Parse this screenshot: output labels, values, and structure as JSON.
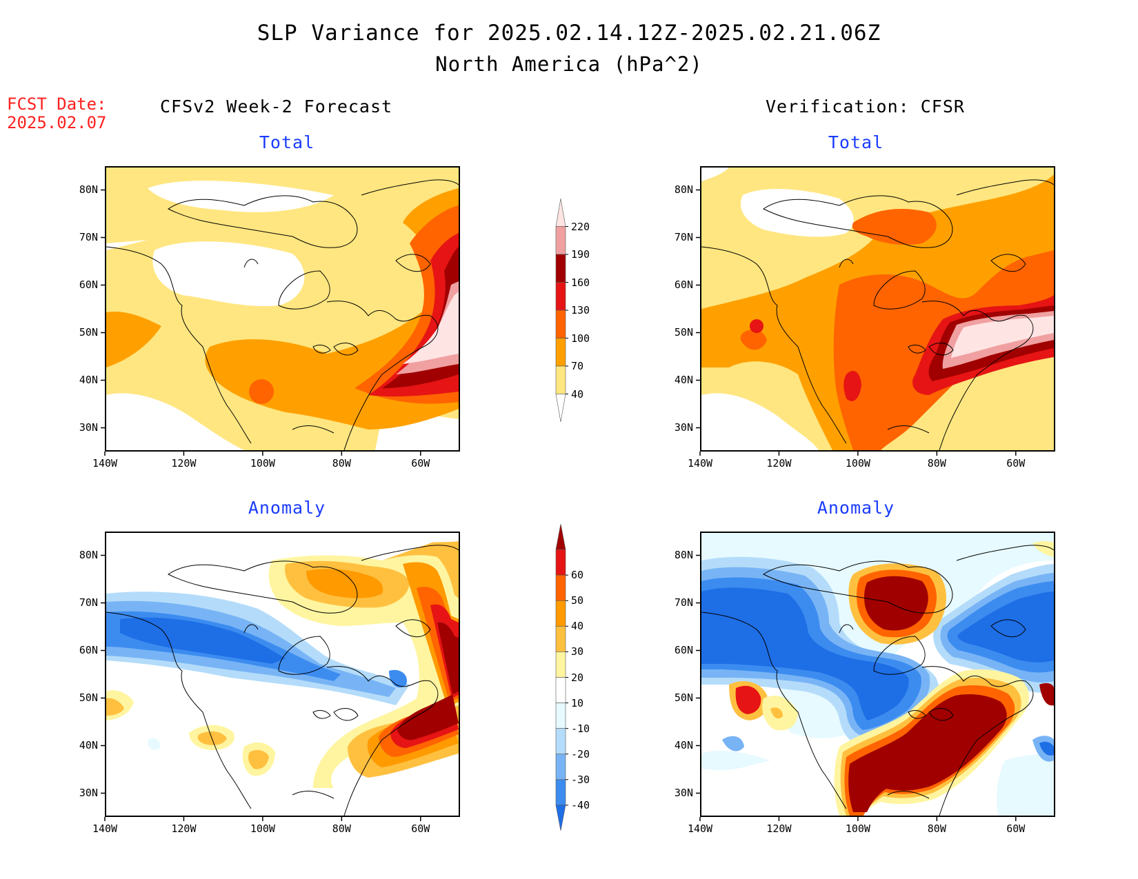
{
  "header": {
    "title": "SLP Variance for 2025.02.14.12Z-2025.02.21.06Z",
    "subtitle": "North America (hPa^2)",
    "fcst_label": "FCST Date:",
    "fcst_date": "2025.02.07"
  },
  "columns": {
    "left": "CFSv2 Week-2 Forecast",
    "right": "Verification: CFSR"
  },
  "panels": {
    "total": "Total",
    "anomaly": "Anomaly"
  },
  "axes": {
    "lat_ticks": [
      "80N",
      "70N",
      "60N",
      "50N",
      "40N",
      "30N"
    ],
    "lon_ticks": [
      "140W",
      "120W",
      "100W",
      "80W",
      "60W"
    ],
    "lon_range": [
      -140,
      -50
    ],
    "lat_range": [
      25,
      85
    ]
  },
  "colorbars": {
    "total": {
      "levels": [
        "40",
        "70",
        "100",
        "130",
        "160",
        "190",
        "220"
      ],
      "colors": [
        "#ffffff",
        "#ffe680",
        "#ffa000",
        "#ff6400",
        "#e61414",
        "#a00000",
        "#f0a0a0",
        "#ffe4e4"
      ]
    },
    "anomaly": {
      "levels": [
        "-40",
        "-30",
        "-20",
        "-10",
        "10",
        "20",
        "30",
        "40",
        "50",
        "60"
      ],
      "colors": [
        "#1e6ee6",
        "#3c8cf0",
        "#78b4f5",
        "#b4dcfa",
        "#e6faff",
        "#ffffff",
        "#fff5a0",
        "#ffc040",
        "#ff9a00",
        "#ff6400",
        "#e61414",
        "#a00000"
      ]
    }
  }
}
